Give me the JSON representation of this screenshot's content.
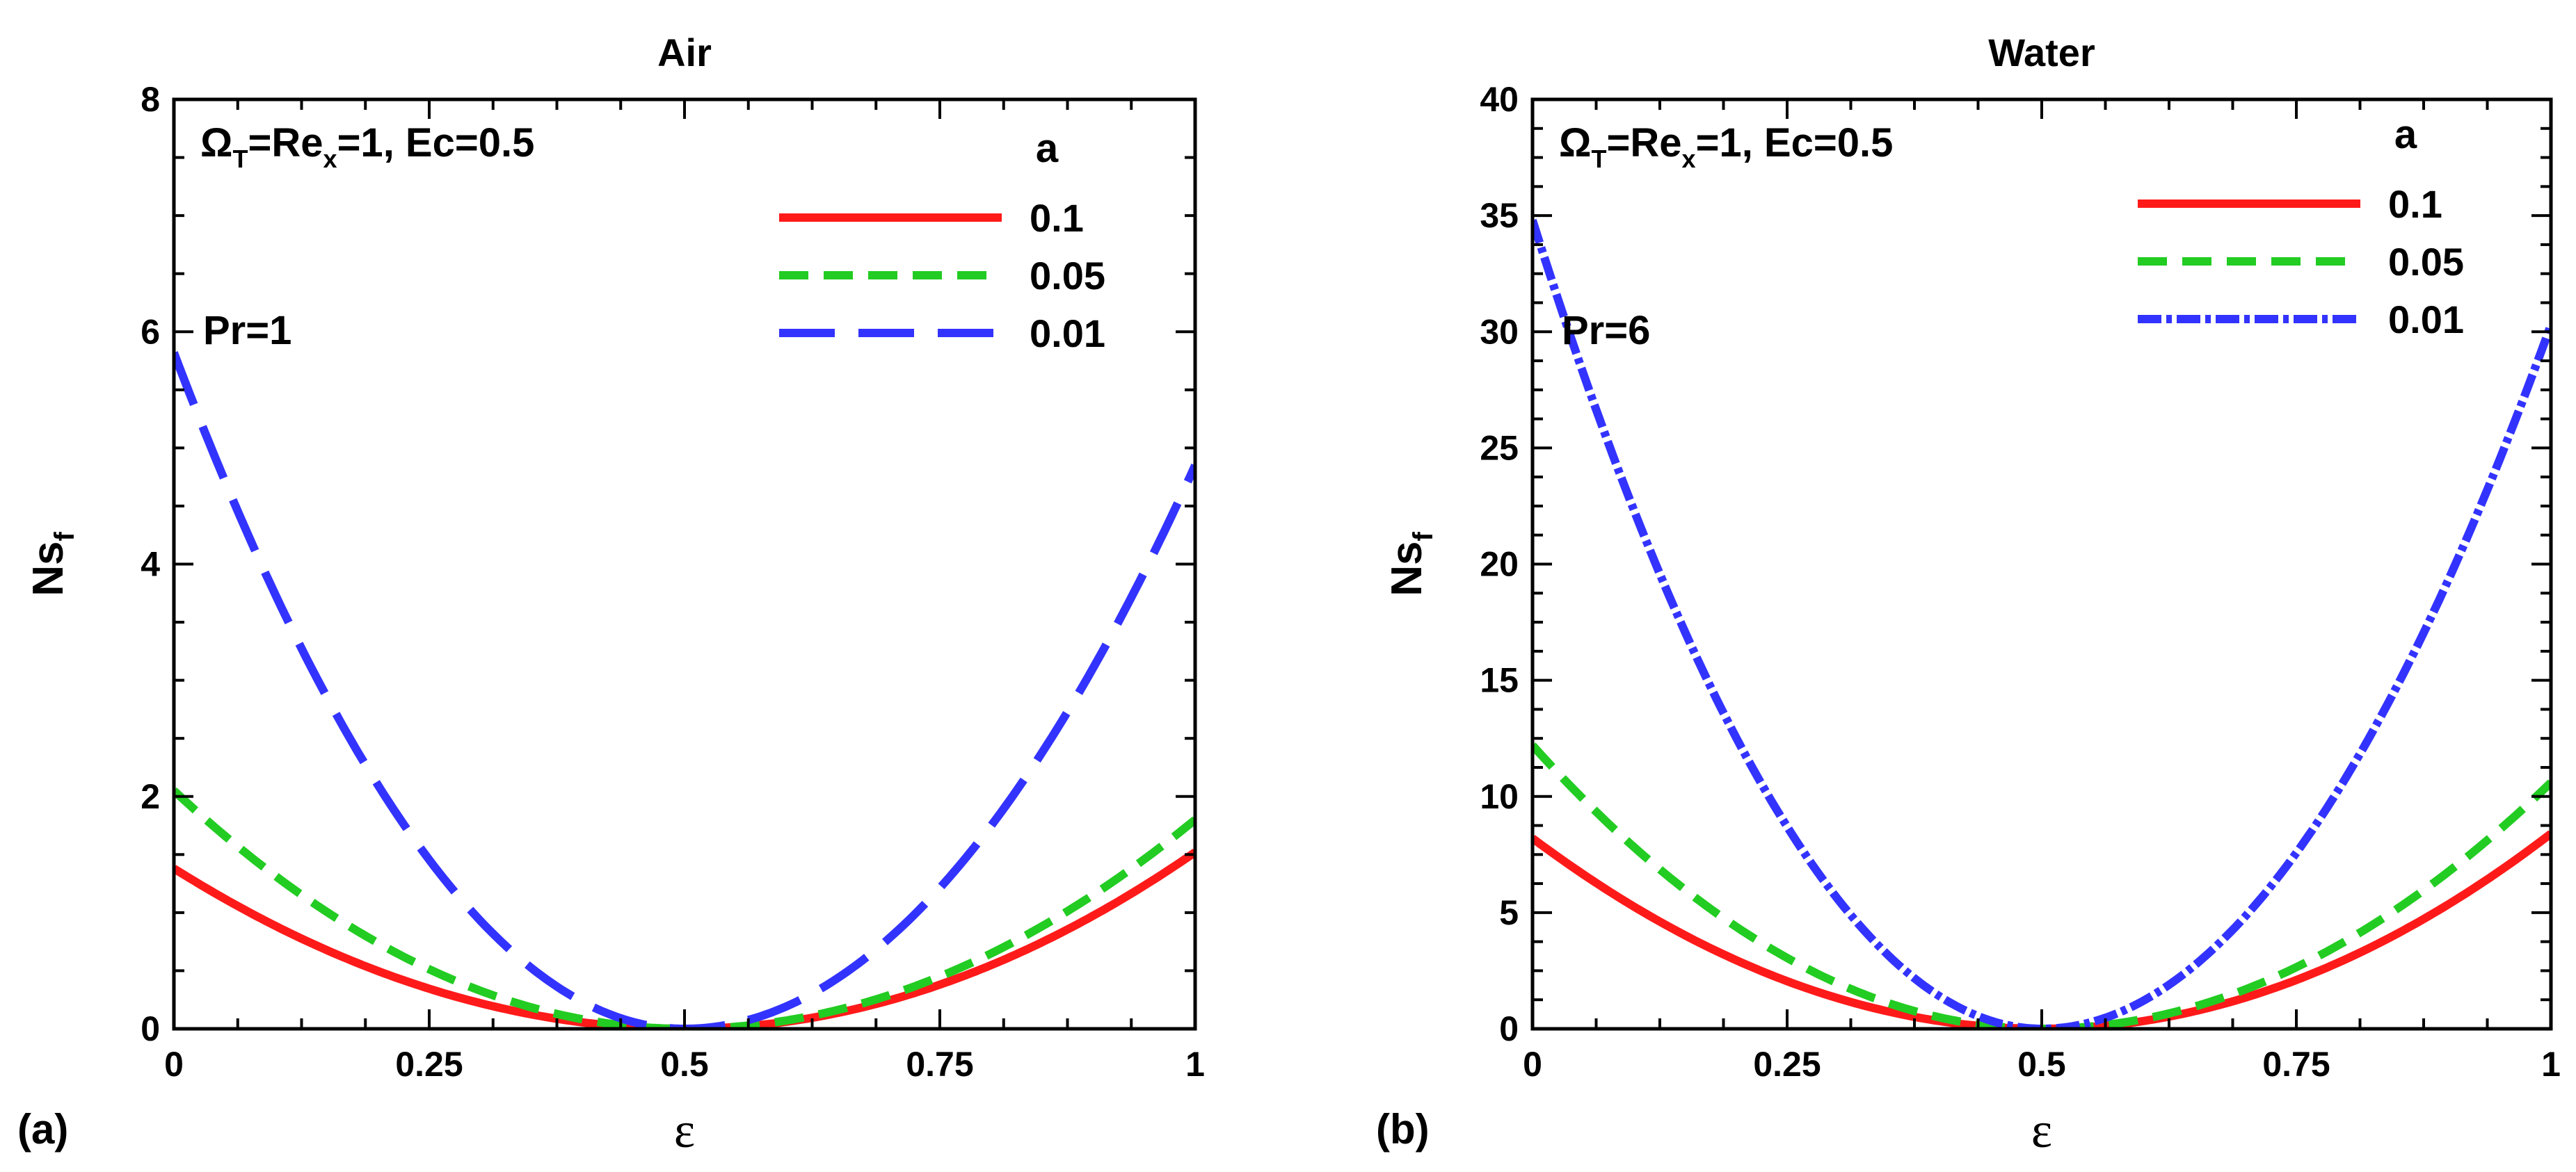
{
  "chart_data": [
    {
      "id": "a",
      "type": "line",
      "panel_label": "(a)",
      "title": "Air",
      "xlabel": "ε",
      "ylabel_main": "Ns",
      "ylabel_sub": "f",
      "xlim": [
        0,
        1
      ],
      "ylim": [
        0,
        8
      ],
      "xticks": [
        0,
        0.25,
        0.5,
        0.75,
        1
      ],
      "xtick_labels": [
        "0",
        "0.25",
        "0.5",
        "0.75",
        "1"
      ],
      "yticks": [
        0,
        2,
        4,
        6,
        8
      ],
      "ytick_labels": [
        "0",
        "2",
        "4",
        "6",
        "8"
      ],
      "annotation": {
        "omega": "Ω",
        "omega_sub": "T",
        "eq1": "=Re",
        "re_sub": "x",
        "eq2": "=1, Ec=0.5"
      },
      "pr_label": "Pr=1",
      "legend_title": "a",
      "series": [
        {
          "name": "0.1",
          "color": "#ff1a1a",
          "style": "solid",
          "min_eps": 0.5,
          "y_at_0": 1.38,
          "y_at_1": 1.52
        },
        {
          "name": "0.05",
          "color": "#22cc22",
          "style": "dashed",
          "min_eps": 0.5,
          "y_at_0": 2.05,
          "y_at_1": 1.8
        },
        {
          "name": "0.01",
          "color": "#3333ff",
          "style": "longdash",
          "min_eps": 0.5,
          "y_at_0": 5.82,
          "y_at_1": 4.85
        }
      ]
    },
    {
      "id": "b",
      "type": "line",
      "panel_label": "(b)",
      "title": "Water",
      "xlabel": "ε",
      "ylabel_main": "Ns",
      "ylabel_sub": "f",
      "xlim": [
        0,
        1
      ],
      "ylim": [
        0,
        40
      ],
      "xticks": [
        0,
        0.25,
        0.5,
        0.75,
        1
      ],
      "xtick_labels": [
        "0",
        "0.25",
        "0.5",
        "0.75",
        "1"
      ],
      "yticks": [
        0,
        5,
        10,
        15,
        20,
        25,
        30,
        35,
        40
      ],
      "ytick_labels": [
        "0",
        "5",
        "10",
        "15",
        "20",
        "25",
        "30",
        "35",
        "40"
      ],
      "annotation": {
        "omega": "Ω",
        "omega_sub": "T",
        "eq1": "=Re",
        "re_sub": "x",
        "eq2": "=1, Ec=0.5"
      },
      "pr_label": "Pr=6",
      "legend_title": "a",
      "series": [
        {
          "name": "0.1",
          "color": "#ff1a1a",
          "style": "solid",
          "min_eps": 0.5,
          "y_at_0": 8.2,
          "y_at_1": 8.4
        },
        {
          "name": "0.05",
          "color": "#22cc22",
          "style": "dashed",
          "min_eps": 0.5,
          "y_at_0": 12.2,
          "y_at_1": 10.6
        },
        {
          "name": "0.01",
          "color": "#3333ff",
          "style": "dashdot",
          "min_eps": 0.5,
          "y_at_0": 34.8,
          "y_at_1": 30.3
        }
      ]
    }
  ]
}
